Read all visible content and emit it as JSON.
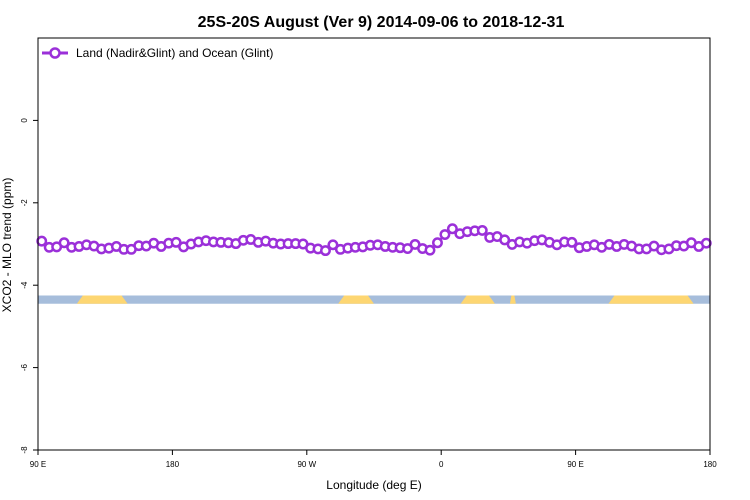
{
  "chart_data": {
    "type": "line",
    "title": "25S-20S August (Ver 9)   2014-09-06 to 2018-12-31",
    "xlabel": "Longitude (deg E)",
    "ylabel": "XCO2 - MLO trend (ppm)",
    "xlim": [
      90,
      540
    ],
    "ylim": [
      -8,
      2
    ],
    "x_ticks": [
      {
        "value": 90,
        "label": "90 E"
      },
      {
        "value": 180,
        "label": "180"
      },
      {
        "value": 270,
        "label": "90 W"
      },
      {
        "value": 360,
        "label": "0"
      },
      {
        "value": 450,
        "label": "90 E"
      },
      {
        "value": 540,
        "label": "180"
      }
    ],
    "y_ticks": [
      {
        "value": 0,
        "label": "0"
      },
      {
        "value": -2,
        "label": "-2"
      },
      {
        "value": -4,
        "label": "-4"
      },
      {
        "value": -6,
        "label": "-6"
      },
      {
        "value": -8,
        "label": "-8"
      }
    ],
    "grid": false,
    "legend_position": "top-left",
    "series": [
      {
        "name": "Land (Nadir&Glint) and Ocean (Glint)",
        "color": "#9b30d9",
        "marker": "open-circle",
        "x": [
          92.5,
          97.5,
          102.5,
          107.5,
          112.5,
          117.5,
          122.5,
          127.5,
          132.5,
          137.5,
          142.5,
          147.5,
          152.5,
          157.5,
          162.5,
          167.5,
          172.5,
          177.5,
          182.5,
          187.5,
          192.5,
          197.5,
          202.5,
          207.5,
          212.5,
          217.5,
          222.5,
          227.5,
          232.5,
          237.5,
          242.5,
          247.5,
          252.5,
          257.5,
          262.5,
          267.5,
          272.5,
          277.5,
          282.5,
          287.5,
          292.5,
          297.5,
          302.5,
          307.5,
          312.5,
          317.5,
          322.5,
          327.5,
          332.5,
          337.5,
          342.5,
          347.5,
          352.5,
          357.5,
          362.5,
          367.5,
          372.5,
          377.5,
          382.5,
          387.5,
          392.5,
          397.5,
          402.5,
          407.5,
          412.5,
          417.5,
          422.5,
          427.5,
          432.5,
          437.5,
          442.5,
          447.5,
          452.5,
          457.5,
          462.5,
          467.5,
          472.5,
          477.5,
          482.5,
          487.5,
          492.5,
          497.5,
          502.5,
          507.5,
          512.5,
          517.5,
          522.5,
          527.5,
          532.5,
          537.5
        ],
        "y": [
          -2.93,
          -3.08,
          -3.07,
          -2.97,
          -3.08,
          -3.06,
          -3.02,
          -3.05,
          -3.12,
          -3.1,
          -3.06,
          -3.13,
          -3.13,
          -3.04,
          -3.05,
          -2.98,
          -3.06,
          -2.98,
          -2.96,
          -3.07,
          -3.0,
          -2.95,
          -2.92,
          -2.95,
          -2.96,
          -2.97,
          -2.99,
          -2.91,
          -2.89,
          -2.96,
          -2.93,
          -2.98,
          -3.0,
          -2.99,
          -2.99,
          -3.0,
          -3.1,
          -3.12,
          -3.16,
          -3.02,
          -3.13,
          -3.1,
          -3.08,
          -3.07,
          -3.03,
          -3.02,
          -3.06,
          -3.08,
          -3.09,
          -3.11,
          -3.01,
          -3.11,
          -3.15,
          -2.97,
          -2.77,
          -2.63,
          -2.75,
          -2.7,
          -2.68,
          -2.67,
          -2.84,
          -2.82,
          -2.9,
          -3.01,
          -2.95,
          -2.98,
          -2.92,
          -2.9,
          -2.96,
          -3.02,
          -2.95,
          -2.96,
          -3.09,
          -3.06,
          -3.02,
          -3.08,
          -3.01,
          -3.06,
          -3.01,
          -3.05,
          -3.12,
          -3.12,
          -3.05,
          -3.14,
          -3.12,
          -3.04,
          -3.05,
          -2.97,
          -3.06,
          -2.98
        ]
      }
    ],
    "land_mask_strip": {
      "y_range": [
        -4.45,
        -4.25
      ],
      "ocean_color": "#a6bddb",
      "land_color": "#fdd672",
      "land_segments": [
        [
          116,
          150
        ],
        [
          291,
          315
        ],
        [
          373,
          396
        ],
        [
          406,
          410
        ],
        [
          472,
          529
        ]
      ]
    }
  }
}
